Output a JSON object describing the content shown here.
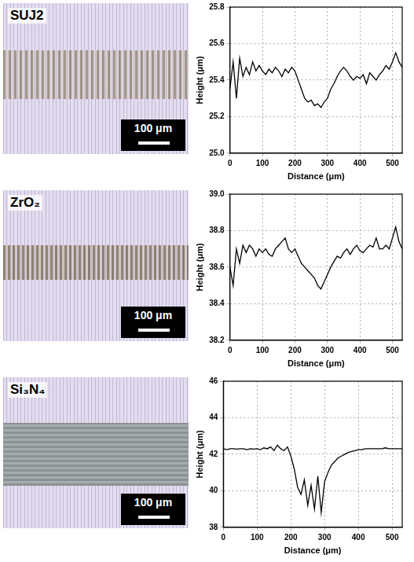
{
  "micrographs": [
    {
      "label": "SUJ2",
      "scale_bar": "100 μm"
    },
    {
      "label": "ZrO₂",
      "scale_bar": "100 μm"
    },
    {
      "label": "Si₃N₄",
      "scale_bar": "100 μm"
    }
  ],
  "chart_data": [
    {
      "type": "line",
      "x_label": "Distance (μm)",
      "y_label": "Height (μm)",
      "color": "#000000",
      "grid": true,
      "x": [
        0,
        10,
        20,
        30,
        40,
        50,
        60,
        70,
        80,
        90,
        100,
        110,
        120,
        130,
        140,
        150,
        160,
        170,
        180,
        190,
        200,
        210,
        220,
        230,
        240,
        250,
        260,
        270,
        280,
        290,
        300,
        310,
        320,
        330,
        340,
        350,
        360,
        370,
        380,
        390,
        400,
        410,
        420,
        430,
        440,
        450,
        460,
        470,
        480,
        490,
        500,
        510,
        520,
        530
      ],
      "values": [
        25.35,
        25.5,
        25.3,
        25.52,
        25.42,
        25.47,
        25.43,
        25.5,
        25.45,
        25.48,
        25.45,
        25.43,
        25.46,
        25.44,
        25.47,
        25.45,
        25.42,
        25.46,
        25.44,
        25.47,
        25.45,
        25.4,
        25.35,
        25.3,
        25.28,
        25.29,
        25.26,
        25.27,
        25.25,
        25.28,
        25.3,
        25.35,
        25.38,
        25.42,
        25.45,
        25.47,
        25.45,
        25.42,
        25.4,
        25.42,
        25.41,
        25.43,
        25.38,
        25.44,
        25.42,
        25.4,
        25.43,
        25.45,
        25.48,
        25.46,
        25.5,
        25.55,
        25.5,
        25.47
      ],
      "xlim": [
        0,
        530
      ],
      "xticks": [
        0,
        100,
        200,
        300,
        400,
        500
      ],
      "ylim": [
        25.0,
        25.8
      ],
      "yticks": [
        {
          "value": 25,
          "label": "25.0"
        },
        25.2,
        25.4,
        25.6,
        25.8
      ]
    },
    {
      "type": "line",
      "x_label": "Distance (μm)",
      "y_label": "Height (μm)",
      "color": "#000000",
      "grid": true,
      "x": [
        0,
        10,
        20,
        30,
        40,
        50,
        60,
        70,
        80,
        90,
        100,
        110,
        120,
        130,
        140,
        150,
        160,
        170,
        180,
        190,
        200,
        210,
        220,
        230,
        240,
        250,
        260,
        270,
        280,
        290,
        300,
        310,
        320,
        330,
        340,
        350,
        360,
        370,
        380,
        390,
        400,
        410,
        420,
        430,
        440,
        450,
        460,
        470,
        480,
        490,
        500,
        510,
        520,
        530
      ],
      "values": [
        38.6,
        38.5,
        38.7,
        38.62,
        38.72,
        38.68,
        38.72,
        38.7,
        38.66,
        38.7,
        38.68,
        38.7,
        38.67,
        38.66,
        38.7,
        38.72,
        38.74,
        38.76,
        38.7,
        38.68,
        38.7,
        38.66,
        38.62,
        38.6,
        38.58,
        38.56,
        38.54,
        38.5,
        38.48,
        38.52,
        38.56,
        38.6,
        38.63,
        38.66,
        38.65,
        38.68,
        38.7,
        38.67,
        38.7,
        38.72,
        38.69,
        38.68,
        38.7,
        38.72,
        38.71,
        38.76,
        38.7,
        38.7,
        38.72,
        38.7,
        38.76,
        38.82,
        38.74,
        38.7
      ],
      "xlim": [
        0,
        530
      ],
      "xticks": [
        0,
        100,
        200,
        300,
        400,
        500
      ],
      "ylim": [
        38.2,
        39.0
      ],
      "yticks": [
        38.2,
        38.4,
        38.6,
        38.8,
        {
          "value": 39,
          "label": "39.0"
        }
      ]
    },
    {
      "type": "line",
      "x_label": "Distance (μm)",
      "y_label": "Height (μm)",
      "color": "#000000",
      "grid": true,
      "x": [
        0,
        10,
        20,
        30,
        40,
        50,
        60,
        70,
        80,
        90,
        100,
        110,
        120,
        130,
        140,
        150,
        160,
        170,
        180,
        190,
        200,
        210,
        220,
        230,
        240,
        250,
        260,
        270,
        280,
        290,
        300,
        310,
        320,
        330,
        340,
        350,
        360,
        370,
        380,
        390,
        400,
        410,
        420,
        430,
        440,
        450,
        460,
        470,
        480,
        490,
        500,
        510,
        520,
        530
      ],
      "values": [
        42.3,
        42.25,
        42.3,
        42.3,
        42.28,
        42.3,
        42.3,
        42.25,
        42.3,
        42.28,
        42.3,
        42.25,
        42.35,
        42.3,
        42.4,
        42.2,
        42.5,
        42.3,
        42.2,
        42.4,
        41.9,
        41.2,
        40.2,
        39.8,
        40.6,
        39.2,
        40.3,
        39.0,
        40.8,
        38.8,
        40.5,
        41.0,
        41.4,
        41.6,
        41.8,
        41.9,
        42.0,
        42.1,
        42.15,
        42.2,
        42.25,
        42.25,
        42.3,
        42.3,
        42.3,
        42.3,
        42.3,
        42.3,
        42.35,
        42.3,
        42.3,
        42.3,
        42.3,
        42.3
      ],
      "xlim": [
        0,
        530
      ],
      "xticks": [
        0,
        100,
        200,
        300,
        400,
        500
      ],
      "ylim": [
        38,
        46
      ],
      "yticks": [
        38,
        40,
        42,
        44,
        46
      ]
    }
  ]
}
